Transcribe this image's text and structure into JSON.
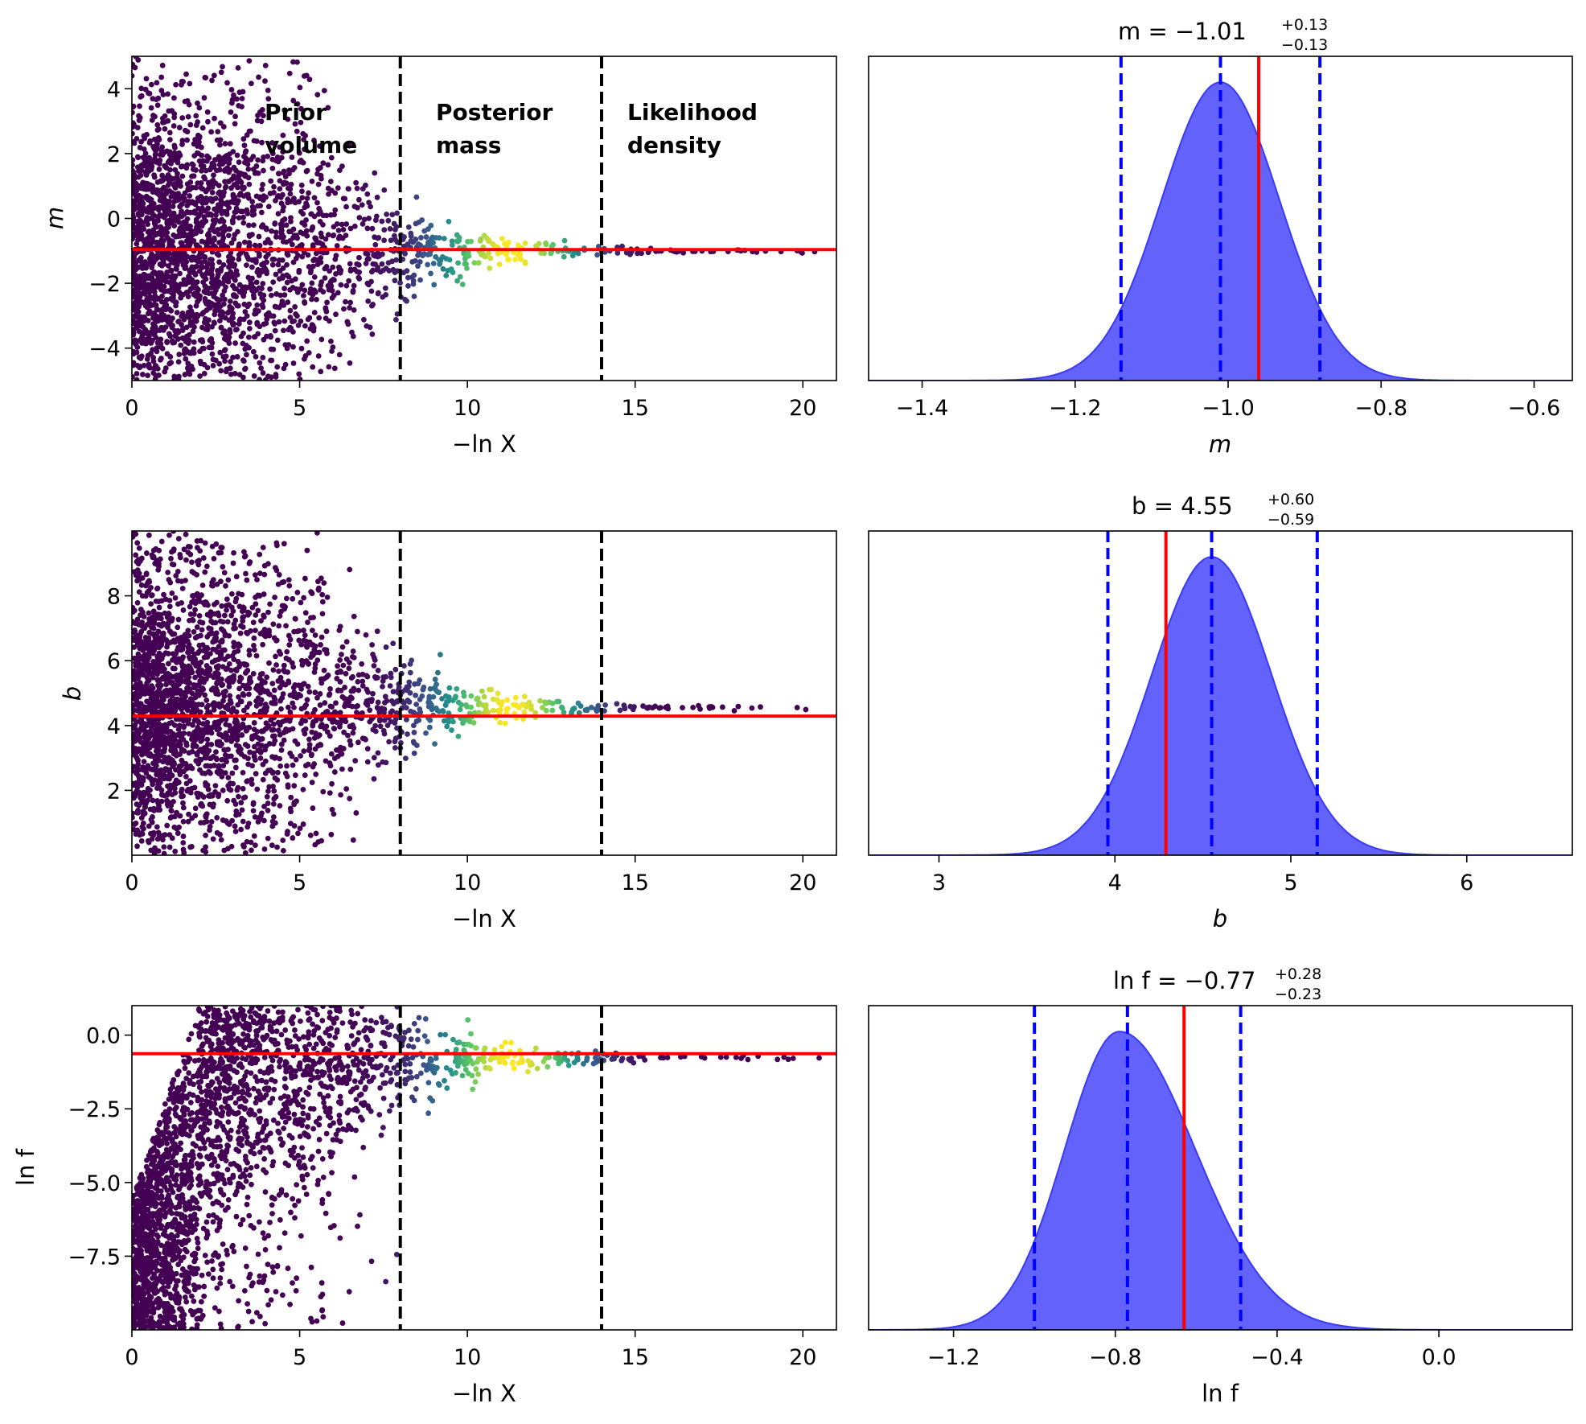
{
  "chart_data": [
    {
      "type": "scatter",
      "panel": "trace-m",
      "xlabel": "−ln X",
      "ylabel": "m",
      "xlim": [
        0,
        21
      ],
      "ylim": [
        -5,
        5
      ],
      "xticks": [
        "0",
        "5",
        "10",
        "15",
        "20"
      ],
      "yticks": [
        "4",
        "2",
        "0",
        "−2",
        "−4"
      ],
      "xtick_values": [
        0,
        5,
        10,
        15,
        20
      ],
      "ytick_values": [
        4,
        2,
        0,
        -2,
        -4
      ],
      "truth": -0.96,
      "center": -1.01,
      "dashed_vlines": [
        8,
        14
      ],
      "annotations": [
        {
          "lines": [
            "Prior",
            "volume"
          ],
          "x": 3.9
        },
        {
          "lines": [
            "Posterior",
            "mass"
          ],
          "x": 9.0
        },
        {
          "lines": [
            "Likelihood",
            "density"
          ],
          "x": 14.7
        }
      ],
      "colormap": "viridis"
    },
    {
      "type": "area",
      "panel": "posterior-m",
      "title": {
        "prefix": "m = −1.01",
        "sup": "+0.13",
        "sub": "−0.13"
      },
      "xlabel": "m",
      "xlim": [
        -1.47,
        -0.55
      ],
      "xticks": [
        "−1.4",
        "−1.2",
        "−1.0",
        "−0.8",
        "−0.6"
      ],
      "xtick_values": [
        -1.4,
        -1.2,
        -1.0,
        -0.8,
        -0.6
      ],
      "mean": -1.01,
      "sigma": 0.077,
      "quantiles": [
        -1.14,
        -1.01,
        -0.88
      ],
      "truth": -0.96,
      "skew": 0
    },
    {
      "type": "scatter",
      "panel": "trace-b",
      "xlabel": "−ln X",
      "ylabel": "b",
      "xlim": [
        0,
        21
      ],
      "ylim": [
        0,
        10
      ],
      "xticks": [
        "0",
        "5",
        "10",
        "15",
        "20"
      ],
      "yticks": [
        "8",
        "6",
        "4",
        "2"
      ],
      "xtick_values": [
        0,
        5,
        10,
        15,
        20
      ],
      "ytick_values": [
        8,
        6,
        4,
        2
      ],
      "truth": 4.29,
      "center": 4.55,
      "dashed_vlines": [
        8,
        14
      ],
      "colormap": "viridis"
    },
    {
      "type": "area",
      "panel": "posterior-b",
      "title": {
        "prefix": "b = 4.55",
        "sup": "+0.60",
        "sub": "−0.59"
      },
      "xlabel": "b",
      "xlim": [
        2.6,
        6.6
      ],
      "xticks": [
        "3",
        "4",
        "5",
        "6"
      ],
      "xtick_values": [
        3,
        4,
        5,
        6
      ],
      "mean": 4.55,
      "sigma": 0.34,
      "quantiles": [
        3.96,
        4.55,
        5.15
      ],
      "truth": 4.29,
      "skew": 0
    },
    {
      "type": "scatter",
      "panel": "trace-lnf",
      "xlabel": "−ln X",
      "ylabel": "ln f",
      "xlim": [
        0,
        21
      ],
      "ylim": [
        -10,
        1
      ],
      "xticks": [
        "0",
        "5",
        "10",
        "15",
        "20"
      ],
      "yticks": [
        "0.0",
        "−2.5",
        "−5.0",
        "−7.5"
      ],
      "xtick_values": [
        0,
        5,
        10,
        15,
        20
      ],
      "ytick_values": [
        0,
        -2.5,
        -5,
        -7.5
      ],
      "truth": -0.63,
      "center": -0.77,
      "dashed_vlines": [
        8,
        14
      ],
      "colormap": "viridis"
    },
    {
      "type": "area",
      "panel": "posterior-lnf",
      "title": {
        "prefix": "ln f = −0.77",
        "sup": "+0.28",
        "sub": "−0.23"
      },
      "xlabel": "ln f",
      "xlim": [
        -1.41,
        0.33
      ],
      "xticks": [
        "−1.2",
        "−0.8",
        "−0.4",
        "0.0"
      ],
      "xtick_values": [
        -1.2,
        -0.8,
        -0.4,
        0.0
      ],
      "mean": -0.79,
      "sigma": 0.15,
      "quantiles": [
        -1.0,
        -0.77,
        -0.49
      ],
      "truth": -0.63,
      "skew": 1
    }
  ]
}
